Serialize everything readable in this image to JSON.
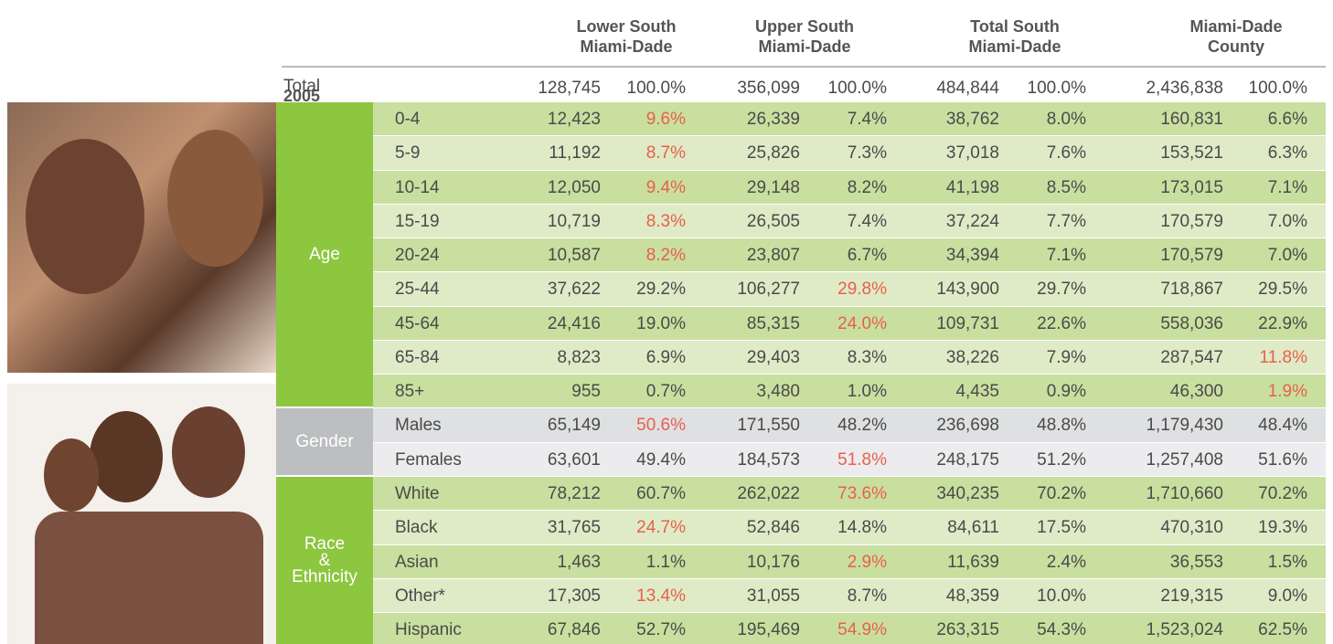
{
  "header": {
    "year": "2005",
    "columns": [
      [
        "Lower South",
        "Miami-Dade"
      ],
      [
        "Upper South",
        "Miami-Dade"
      ],
      [
        "Total South",
        "Miami-Dade"
      ],
      [
        "Miami-Dade",
        "County"
      ]
    ]
  },
  "total": {
    "label": "Total",
    "cells": [
      "128,745",
      "100.0%",
      "356,099",
      "100.0%",
      "484,844",
      "100.0%",
      "2,436,838",
      "100.0%"
    ]
  },
  "groups": [
    {
      "label": [
        "Age"
      ],
      "rows": [
        {
          "label": "0-4",
          "cells": [
            "12,423",
            {
              "text": "9.6%",
              "color": "#e8604c"
            },
            "26,339",
            "7.4%",
            "38,762",
            "8.0%",
            "160,831",
            "6.6%"
          ]
        },
        {
          "label": "5-9",
          "cells": [
            "11,192",
            {
              "text": "8.7%",
              "color": "#e8604c"
            },
            "25,826",
            "7.3%",
            "37,018",
            "7.6%",
            "153,521",
            "6.3%"
          ]
        },
        {
          "label": "10-14",
          "cells": [
            "12,050",
            {
              "text": "9.4%",
              "color": "#e8604c"
            },
            "29,148",
            "8.2%",
            "41,198",
            "8.5%",
            "173,015",
            "7.1%"
          ]
        },
        {
          "label": "15-19",
          "cells": [
            "10,719",
            {
              "text": "8.3%",
              "color": "#e8604c"
            },
            "26,505",
            "7.4%",
            "37,224",
            "7.7%",
            "170,579",
            "7.0%"
          ]
        },
        {
          "label": "20-24",
          "cells": [
            "10,587",
            {
              "text": "8.2%",
              "color": "#e8604c"
            },
            "23,807",
            "6.7%",
            "34,394",
            "7.1%",
            "170,579",
            "7.0%"
          ]
        },
        {
          "label": "25-44",
          "cells": [
            "37,622",
            "29.2%",
            "106,277",
            {
              "text": "29.8%",
              "color": "#e8604c"
            },
            "143,900",
            "29.7%",
            "718,867",
            "29.5%"
          ]
        },
        {
          "label": "45-64",
          "cells": [
            "24,416",
            "19.0%",
            "85,315",
            {
              "text": "24.0%",
              "color": "#e8604c"
            },
            "109,731",
            "22.6%",
            "558,036",
            "22.9%"
          ]
        },
        {
          "label": "65-84",
          "cells": [
            "8,823",
            "6.9%",
            "29,403",
            "8.3%",
            "38,226",
            "7.9%",
            "287,547",
            {
              "text": "11.8%",
              "color": "#e8604c"
            }
          ]
        },
        {
          "label": "85+",
          "cells": [
            "955",
            "0.7%",
            "3,480",
            "1.0%",
            "4,435",
            "0.9%",
            "46,300",
            {
              "text": "1.9%",
              "color": "#e8604c"
            }
          ]
        }
      ]
    },
    {
      "label": [
        "Gender"
      ],
      "rows": [
        {
          "label": "Males",
          "cells": [
            "65,149",
            {
              "text": "50.6%",
              "color": "#e8604c"
            },
            "171,550",
            "48.2%",
            "236,698",
            "48.8%",
            "1,179,430",
            "48.4%"
          ]
        },
        {
          "label": "Females",
          "cells": [
            "63,601",
            "49.4%",
            "184,573",
            {
              "text": "51.8%",
              "color": "#e8604c"
            },
            "248,175",
            "51.2%",
            "1,257,408",
            "51.6%"
          ]
        }
      ]
    },
    {
      "label": [
        "Race",
        "&",
        "Ethnicity"
      ],
      "rows": [
        {
          "label": "White",
          "cells": [
            "78,212",
            "60.7%",
            "262,022",
            {
              "text": "73.6%",
              "color": "#e8604c"
            },
            "340,235",
            "70.2%",
            "1,710,660",
            "70.2%"
          ]
        },
        {
          "label": "Black",
          "cells": [
            "31,765",
            {
              "text": "24.7%",
              "color": "#e8604c"
            },
            "52,846",
            "14.8%",
            "84,611",
            "17.5%",
            "470,310",
            "19.3%"
          ]
        },
        {
          "label": "Asian",
          "cells": [
            "1,463",
            "1.1%",
            "10,176",
            {
              "text": "2.9%",
              "color": "#e8604c"
            },
            "11,639",
            "2.4%",
            "36,553",
            "1.5%"
          ]
        },
        {
          "label": "Other*",
          "cells": [
            "17,305",
            {
              "text": "13.4%",
              "color": "#e8604c"
            },
            "31,055",
            "8.7%",
            "48,359",
            "10.0%",
            "219,315",
            "9.0%"
          ]
        },
        {
          "label": "Hispanic",
          "cells": [
            "67,846",
            "52.7%",
            "195,469",
            {
              "text": "54.9%",
              "color": "#e8604c"
            },
            "263,315",
            "54.3%",
            "1,523,024",
            "62.5%"
          ]
        }
      ]
    }
  ]
}
